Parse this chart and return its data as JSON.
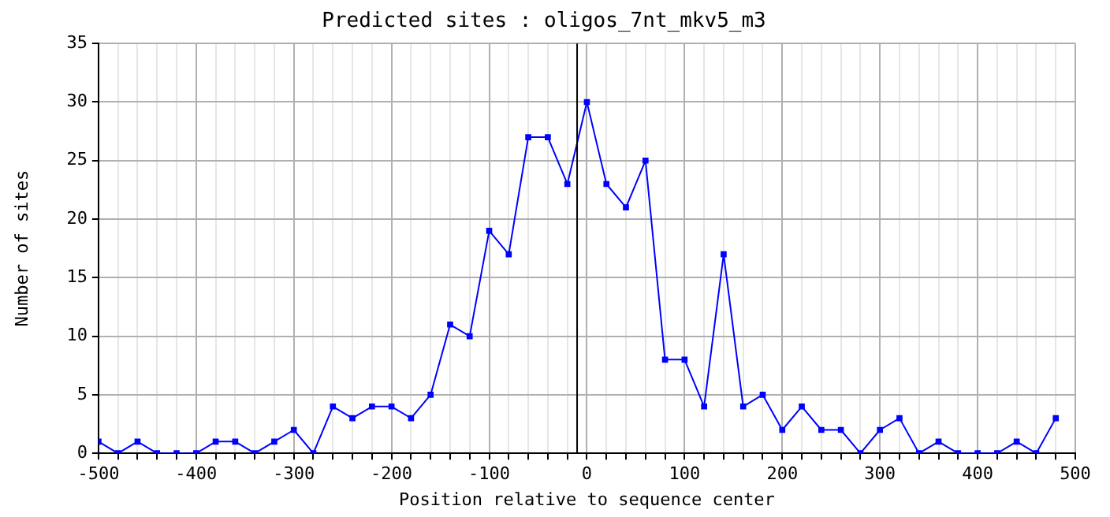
{
  "chart_data": {
    "type": "line",
    "title": "Predicted sites : oligos_7nt_mkv5_m3",
    "xlabel": "Position relative to sequence center",
    "ylabel": "Number of sites",
    "x": [
      -500,
      -480,
      -460,
      -440,
      -420,
      -400,
      -380,
      -360,
      -340,
      -320,
      -300,
      -280,
      -260,
      -240,
      -220,
      -200,
      -180,
      -160,
      -140,
      -120,
      -100,
      -80,
      -60,
      -40,
      -20,
      0,
      20,
      40,
      60,
      80,
      100,
      120,
      140,
      160,
      180,
      200,
      220,
      240,
      260,
      280,
      300,
      320,
      340,
      360,
      380,
      400,
      420,
      440,
      460,
      480
    ],
    "series": [
      {
        "color": "#0000ff",
        "values": [
          1,
          0,
          1,
          0,
          0,
          0,
          1,
          1,
          0,
          1,
          2,
          0,
          4,
          3,
          4,
          4,
          3,
          5,
          11,
          10,
          19,
          17,
          27,
          27,
          23,
          30,
          23,
          21,
          25,
          8,
          8,
          4,
          17,
          4,
          5,
          2,
          4,
          2,
          2,
          0,
          2,
          3,
          0,
          1,
          0,
          0,
          0,
          1,
          0,
          3
        ]
      }
    ],
    "xlim": [
      -500,
      500
    ],
    "xticks": [
      -500,
      {
        "value": -480,
        "label": null
      },
      {
        "value": -460,
        "label": null
      },
      {
        "value": -440,
        "label": null
      },
      {
        "value": -420,
        "label": null
      },
      -400,
      {
        "value": -380,
        "label": null
      },
      {
        "value": -360,
        "label": null
      },
      {
        "value": -340,
        "label": null
      },
      {
        "value": -320,
        "label": null
      },
      -300,
      {
        "value": -280,
        "label": null
      },
      {
        "value": -260,
        "label": null
      },
      {
        "value": -240,
        "label": null
      },
      {
        "value": -220,
        "label": null
      },
      -200,
      {
        "value": -180,
        "label": null
      },
      {
        "value": -160,
        "label": null
      },
      {
        "value": -140,
        "label": null
      },
      {
        "value": -120,
        "label": null
      },
      -100,
      {
        "value": -80,
        "label": null
      },
      {
        "value": -60,
        "label": null
      },
      {
        "value": -40,
        "label": null
      },
      {
        "value": -20,
        "label": null
      },
      0,
      {
        "value": 20,
        "label": null
      },
      {
        "value": 40,
        "label": null
      },
      {
        "value": 60,
        "label": null
      },
      {
        "value": 80,
        "label": null
      },
      100,
      {
        "value": 120,
        "label": null
      },
      {
        "value": 140,
        "label": null
      },
      {
        "value": 160,
        "label": null
      },
      {
        "value": 180,
        "label": null
      },
      200,
      {
        "value": 220,
        "label": null
      },
      {
        "value": 240,
        "label": null
      },
      {
        "value": 260,
        "label": null
      },
      {
        "value": 280,
        "label": null
      },
      300,
      {
        "value": 320,
        "label": null
      },
      {
        "value": 340,
        "label": null
      },
      {
        "value": 360,
        "label": null
      },
      {
        "value": 380,
        "label": null
      },
      400,
      {
        "value": 420,
        "label": null
      },
      {
        "value": 440,
        "label": null
      },
      {
        "value": 460,
        "label": null
      },
      {
        "value": 480,
        "label": null
      },
      500
    ],
    "ylim": [
      0,
      35
    ],
    "yticks": [
      0,
      5,
      10,
      15,
      20,
      25,
      30,
      35
    ],
    "ref_lines": [
      {
        "axis": "x",
        "value": -10,
        "color": "#000000"
      }
    ],
    "grid": true,
    "marker": "square",
    "line_style": "solid"
  }
}
